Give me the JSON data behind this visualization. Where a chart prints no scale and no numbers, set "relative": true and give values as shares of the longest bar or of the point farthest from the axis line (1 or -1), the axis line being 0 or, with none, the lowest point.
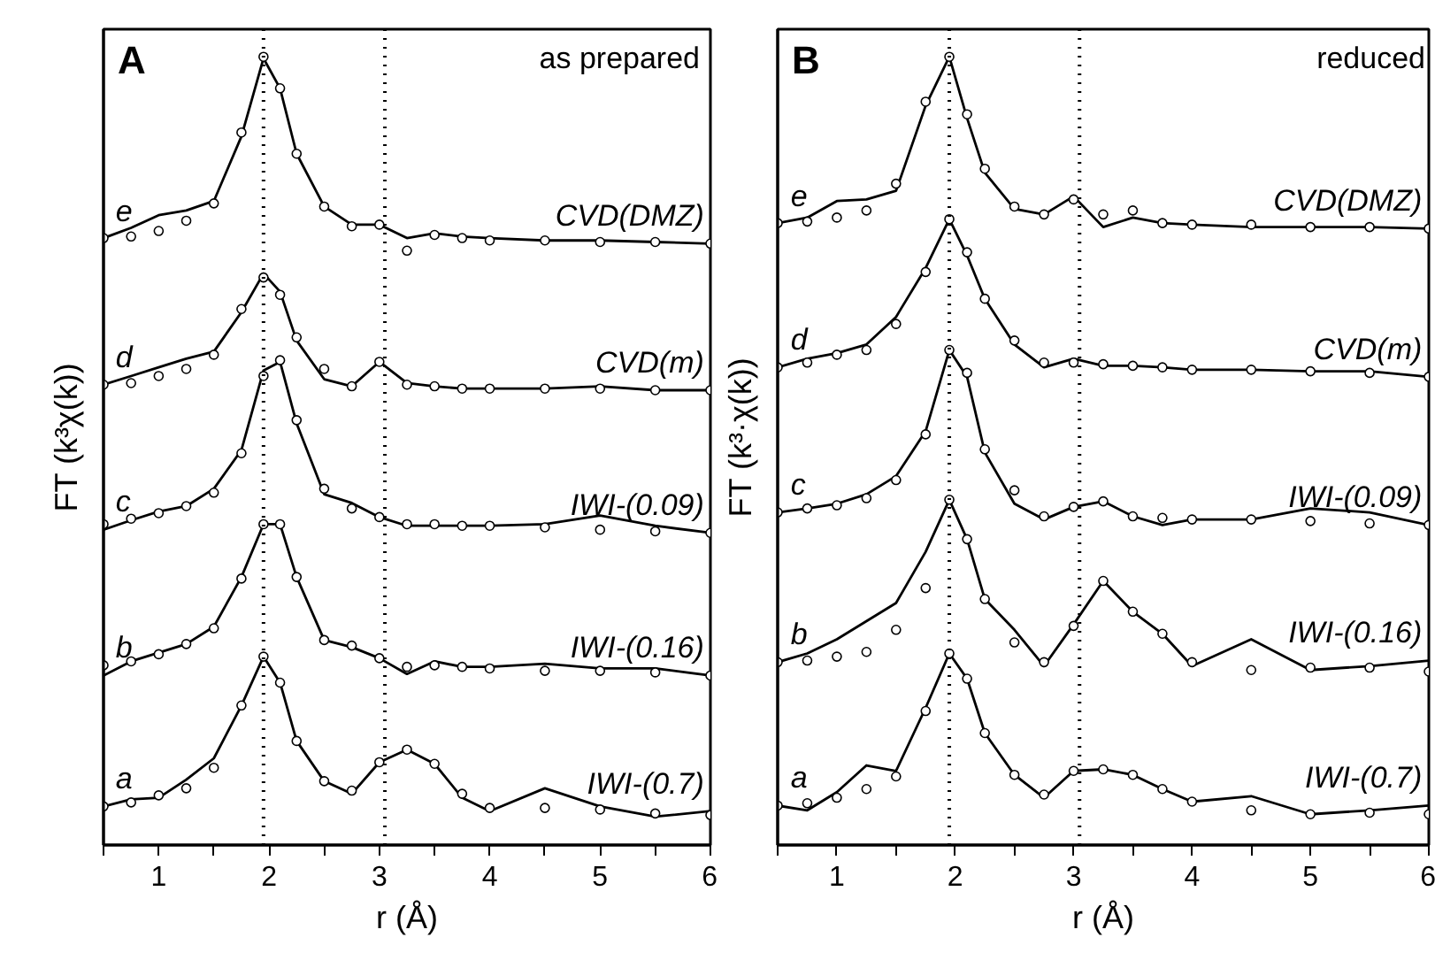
{
  "chart_data": [
    {
      "type": "line",
      "title": "A",
      "subtitle": "as prepared",
      "xlabel": "r (Å)",
      "ylabel": "FT (k³χ(k))",
      "relative": true,
      "xlim": [
        0.5,
        6
      ],
      "xticks": [
        {
          "value": 0.5,
          "label": null
        },
        1,
        {
          "value": 1.5,
          "label": null
        },
        2,
        {
          "value": 2.5,
          "label": null
        },
        3,
        {
          "value": 3.5,
          "label": null
        },
        4,
        {
          "value": 4.5,
          "label": null
        },
        5,
        {
          "value": 5.5,
          "label": null
        },
        6
      ],
      "grid": false,
      "x": [
        0.5,
        0.75,
        1,
        1.25,
        1.5,
        1.75,
        1.95,
        2.1,
        2.25,
        2.5,
        2.75,
        3,
        3.25,
        3.5,
        3.75,
        4,
        4.5,
        5,
        5.5,
        6
      ],
      "series": [
        {
          "type": "line",
          "color": "#000000",
          "values": [
            0.77,
            0.783,
            0.799,
            0.805,
            0.817,
            0.899,
            0.998,
            0.96,
            0.877,
            0.81,
            0.787,
            0.787,
            0.77,
            0.776,
            0.772,
            0.77,
            0.767,
            0.767,
            0.765,
            0.763
          ]
        },
        {
          "type": "scatter",
          "marker": "circle",
          "color": "#000000",
          "values": [
            0.77,
            0.772,
            0.779,
            0.792,
            0.814,
            0.904,
            1.0,
            0.96,
            0.877,
            0.81,
            0.785,
            0.787,
            0.754,
            0.774,
            0.77,
            0.767,
            0.767,
            0.765,
            0.765,
            0.763
          ]
        },
        {
          "type": "line",
          "color": "#000000",
          "values": [
            0.584,
            0.595,
            0.606,
            0.617,
            0.626,
            0.676,
            0.725,
            0.702,
            0.64,
            0.591,
            0.582,
            0.613,
            0.586,
            0.582,
            0.579,
            0.579,
            0.579,
            0.582,
            0.577,
            0.577
          ]
        },
        {
          "type": "scatter",
          "marker": "circle",
          "color": "#000000",
          "values": [
            0.584,
            0.586,
            0.595,
            0.604,
            0.622,
            0.68,
            0.72,
            0.698,
            0.644,
            0.604,
            0.582,
            0.613,
            0.584,
            0.582,
            0.579,
            0.579,
            0.579,
            0.579,
            0.577,
            0.577
          ]
        },
        {
          "type": "line",
          "color": "#000000",
          "values": [
            0.4,
            0.412,
            0.423,
            0.43,
            0.452,
            0.501,
            0.602,
            0.613,
            0.535,
            0.445,
            0.434,
            0.416,
            0.405,
            0.405,
            0.405,
            0.405,
            0.407,
            0.418,
            0.405,
            0.396
          ]
        },
        {
          "type": "scatter",
          "marker": "circle",
          "color": "#000000",
          "values": [
            0.407,
            0.414,
            0.421,
            0.43,
            0.447,
            0.497,
            0.595,
            0.615,
            0.539,
            0.452,
            0.427,
            0.416,
            0.407,
            0.407,
            0.405,
            0.405,
            0.403,
            0.4,
            0.398,
            0.396
          ]
        },
        {
          "type": "line",
          "color": "#000000",
          "values": [
            0.215,
            0.233,
            0.244,
            0.255,
            0.277,
            0.34,
            0.407,
            0.407,
            0.34,
            0.26,
            0.251,
            0.237,
            0.217,
            0.233,
            0.226,
            0.226,
            0.23,
            0.224,
            0.224,
            0.215
          ]
        },
        {
          "type": "scatter",
          "marker": "circle",
          "color": "#000000",
          "values": [
            0.228,
            0.233,
            0.242,
            0.255,
            0.275,
            0.338,
            0.407,
            0.407,
            0.34,
            0.26,
            0.253,
            0.237,
            0.226,
            0.228,
            0.226,
            0.224,
            0.221,
            0.221,
            0.219,
            0.215
          ]
        },
        {
          "type": "line",
          "color": "#000000",
          "values": [
            0.049,
            0.058,
            0.06,
            0.083,
            0.11,
            0.177,
            0.239,
            0.206,
            0.132,
            0.081,
            0.065,
            0.105,
            0.121,
            0.103,
            0.06,
            0.043,
            0.072,
            0.049,
            0.036,
            0.043
          ]
        },
        {
          "type": "scatter",
          "marker": "circle",
          "color": "#000000",
          "values": [
            0.049,
            0.054,
            0.063,
            0.072,
            0.098,
            0.177,
            0.239,
            0.206,
            0.132,
            0.081,
            0.069,
            0.105,
            0.121,
            0.103,
            0.065,
            0.047,
            0.047,
            0.045,
            0.04,
            0.038
          ]
        }
      ],
      "ref_lines": [
        {
          "axis": "x",
          "value": 1.95,
          "color": "#000000",
          "line_style": "dotted"
        },
        {
          "axis": "x",
          "value": 3.05,
          "color": "#000000",
          "line_style": "dotted"
        }
      ],
      "annotations": [
        "e",
        "CVD(DMZ)",
        "d",
        "CVD(m)",
        "c",
        "IWI-(0.09)",
        "b",
        "IWI-(0.16)",
        "a",
        "IWI-(0.7)"
      ]
    },
    {
      "type": "line",
      "title": "B",
      "subtitle": "reduced",
      "xlabel": "r (Å)",
      "ylabel": "FT (k³·χ(k))",
      "relative": true,
      "xlim": [
        0.5,
        6
      ],
      "xticks": [
        {
          "value": 0.5,
          "label": null
        },
        1,
        {
          "value": 1.5,
          "label": null
        },
        2,
        {
          "value": 2.5,
          "label": null
        },
        3,
        {
          "value": 3.5,
          "label": null
        },
        4,
        {
          "value": 4.5,
          "label": null
        },
        5,
        {
          "value": 5.5,
          "label": null
        },
        6
      ],
      "grid": false,
      "x": [
        0.5,
        0.75,
        1,
        1.25,
        1.5,
        1.75,
        1.95,
        2.1,
        2.25,
        2.5,
        2.75,
        3,
        3.25,
        3.5,
        3.75,
        4,
        4.5,
        5,
        5.5,
        6
      ],
      "series": [
        {
          "type": "line",
          "color": "#000000",
          "values": [
            0.789,
            0.796,
            0.817,
            0.819,
            0.83,
            0.938,
            1.0,
            0.922,
            0.853,
            0.807,
            0.8,
            0.823,
            0.784,
            0.796,
            0.789,
            0.787,
            0.784,
            0.784,
            0.784,
            0.782
          ]
        },
        {
          "type": "scatter",
          "marker": "circle",
          "color": "#000000",
          "values": [
            0.789,
            0.791,
            0.796,
            0.805,
            0.839,
            0.943,
            1.0,
            0.927,
            0.858,
            0.81,
            0.8,
            0.819,
            0.8,
            0.805,
            0.789,
            0.787,
            0.787,
            0.784,
            0.784,
            0.782
          ]
        },
        {
          "type": "line",
          "color": "#000000",
          "values": [
            0.606,
            0.617,
            0.624,
            0.635,
            0.67,
            0.732,
            0.794,
            0.748,
            0.693,
            0.635,
            0.606,
            0.617,
            0.608,
            0.608,
            0.606,
            0.603,
            0.603,
            0.601,
            0.601,
            0.594
          ]
        },
        {
          "type": "scatter",
          "marker": "circle",
          "color": "#000000",
          "values": [
            0.606,
            0.612,
            0.622,
            0.628,
            0.661,
            0.727,
            0.794,
            0.752,
            0.693,
            0.64,
            0.612,
            0.612,
            0.61,
            0.608,
            0.606,
            0.603,
            0.603,
            0.601,
            0.599,
            0.594
          ]
        },
        {
          "type": "line",
          "color": "#000000",
          "values": [
            0.422,
            0.427,
            0.433,
            0.445,
            0.468,
            0.525,
            0.628,
            0.594,
            0.498,
            0.433,
            0.413,
            0.429,
            0.436,
            0.417,
            0.406,
            0.413,
            0.413,
            0.427,
            0.422,
            0.406
          ]
        },
        {
          "type": "scatter",
          "marker": "circle",
          "color": "#000000",
          "values": [
            0.422,
            0.427,
            0.431,
            0.44,
            0.463,
            0.521,
            0.628,
            0.599,
            0.502,
            0.45,
            0.417,
            0.429,
            0.436,
            0.417,
            0.415,
            0.413,
            0.413,
            0.411,
            0.408,
            0.406
          ]
        },
        {
          "type": "line",
          "color": "#000000",
          "values": [
            0.232,
            0.243,
            0.261,
            0.284,
            0.307,
            0.372,
            0.438,
            0.388,
            0.312,
            0.273,
            0.227,
            0.28,
            0.335,
            0.296,
            0.268,
            0.227,
            0.261,
            0.222,
            0.227,
            0.234
          ]
        },
        {
          "type": "scatter",
          "marker": "circle",
          "color": "#000000",
          "values": [
            0.232,
            0.234,
            0.239,
            0.245,
            0.273,
            0.326,
            0.438,
            0.388,
            0.312,
            0.257,
            0.232,
            0.278,
            0.335,
            0.296,
            0.268,
            0.232,
            0.222,
            0.225,
            0.225,
            0.22
          ]
        },
        {
          "type": "line",
          "color": "#000000",
          "values": [
            0.05,
            0.044,
            0.067,
            0.101,
            0.094,
            0.174,
            0.243,
            0.211,
            0.142,
            0.089,
            0.06,
            0.094,
            0.096,
            0.089,
            0.071,
            0.055,
            0.062,
            0.039,
            0.044,
            0.05
          ]
        },
        {
          "type": "scatter",
          "marker": "circle",
          "color": "#000000",
          "values": [
            0.05,
            0.053,
            0.06,
            0.071,
            0.087,
            0.17,
            0.243,
            0.211,
            0.142,
            0.089,
            0.064,
            0.094,
            0.096,
            0.089,
            0.071,
            0.055,
            0.044,
            0.039,
            0.041,
            0.039
          ]
        }
      ],
      "ref_lines": [
        {
          "axis": "x",
          "value": 1.95,
          "color": "#000000",
          "line_style": "dotted"
        },
        {
          "axis": "x",
          "value": 3.05,
          "color": "#000000",
          "line_style": "dotted"
        }
      ],
      "annotations": [
        "e",
        "CVD(DMZ)",
        "d",
        "CVD(m)",
        "c",
        "IWI-(0.09)",
        "b",
        "IWI-(0.16)",
        "a",
        "IWI-(0.7)"
      ]
    }
  ]
}
